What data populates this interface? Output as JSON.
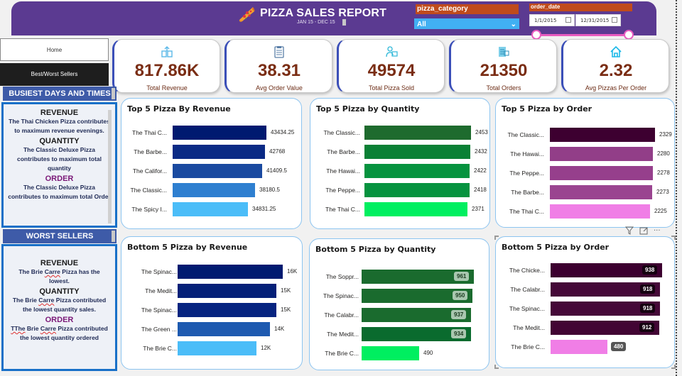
{
  "header": {
    "title": "PIZZA SALES REPORT",
    "subtitle": "JAN 15 - DEC 15",
    "icon": "pizza-slice-icon",
    "bg_color": "#5b3a91"
  },
  "filters": {
    "category": {
      "label": "pizza_category",
      "value": "All",
      "icon": "chevron-down-icon"
    },
    "order_date": {
      "label": "order_date",
      "start": "1/1/2015",
      "end": "12/31/2015",
      "icon": "calendar-icon",
      "slider_color": "#e85bbf"
    }
  },
  "nav": {
    "home": "Home",
    "best_worst": "Best/Worst Sellers"
  },
  "kpis": [
    {
      "value": "817.86K",
      "label": "Total Revenue",
      "icon": "money-stack-icon"
    },
    {
      "value": "38.31",
      "label": "Avg Order Value",
      "icon": "clipboard-icon"
    },
    {
      "value": "49574",
      "label": "Total Pizza Sold",
      "icon": "delivery-person-icon"
    },
    {
      "value": "21350",
      "label": "Total Orders",
      "icon": "order-list-icon"
    },
    {
      "value": "2.32",
      "label": "Avg Pizzas Per Order",
      "icon": "house-icon"
    }
  ],
  "busiest": {
    "heading": "BUSIEST DAYS AND TIMES",
    "revenue_h": "REVENUE",
    "revenue_t": "The Thai Chicken Pizza contributes to maximum revenue evenings.",
    "quantity_h": "QUANTITY",
    "quantity_t": "The Classic Deluxe Pizza contributes to maximum total quantity",
    "order_h": "ORDER",
    "order_t": "The Classic Deluxe Pizza contributes to maximum total Order"
  },
  "worst": {
    "heading": "WORST SELLERS",
    "revenue_h": "REVENUE",
    "revenue_t1": "The Brie ",
    "revenue_sq": "Carre",
    "revenue_t2": " Pizza has the lowest.",
    "quantity_h": "QUANTITY",
    "quantity_t1": "The Brie ",
    "quantity_sq": "Carre",
    "quantity_t2": " Pizza contributed the lowest quantity sales.",
    "order_h": "ORDER",
    "order_sq1": "TThe",
    "order_t1": " Brie ",
    "order_sq2": "Carre",
    "order_t2": " Pizza contributed the lowest quantity ordered"
  },
  "toolbar": {
    "filter_icon": "filter-icon",
    "focus_icon": "focus-mode-icon",
    "more_icon": "more-options-icon",
    "more_label": "···"
  },
  "chart_data": [
    {
      "type": "bar",
      "title": "Top 5 Pizza By Revenue",
      "categories": [
        "The Thai C...",
        "The Barbe...",
        "The Califor...",
        "The Classic...",
        "The Spicy I..."
      ],
      "values": [
        43434.25,
        42768,
        41409.5,
        38180.5,
        34831.25
      ],
      "labels": [
        "43434.25",
        "42768",
        "41409.5",
        "38180.5",
        "34831.25"
      ],
      "colors": [
        "#001a70",
        "#0a2a85",
        "#1a4aa0",
        "#2e7fd0",
        "#4bbdf8"
      ],
      "label_position": "outside"
    },
    {
      "type": "bar",
      "title": "Top 5 Pizza by Quantity",
      "categories": [
        "The Classic...",
        "The Barbe...",
        "The Hawai...",
        "The Peppe...",
        "The Thai C..."
      ],
      "values": [
        2453,
        2432,
        2422,
        2418,
        2371
      ],
      "labels": [
        "2453",
        "2432",
        "2422",
        "2418",
        "2371"
      ],
      "colors": [
        "#1e6b2e",
        "#0a8035",
        "#06933f",
        "#06933f",
        "#00ef60"
      ],
      "label_position": "outside"
    },
    {
      "type": "bar",
      "title": "Top 5 Pizza by Order",
      "categories": [
        "The Classic...",
        "The Hawai...",
        "The Peppe...",
        "The Barbe...",
        "The Thai C..."
      ],
      "values": [
        2329,
        2280,
        2278,
        2273,
        2225
      ],
      "labels": [
        "2329",
        "2280",
        "2278",
        "2273",
        "2225"
      ],
      "colors": [
        "#3d0030",
        "#923e88",
        "#963f8c",
        "#9a4490",
        "#f07ee6"
      ],
      "label_position": "outside"
    },
    {
      "type": "bar",
      "title": "Bottom 5 Pizza by Revenue",
      "categories": [
        "The Spinac...",
        "The Medit...",
        "The Spinac...",
        "The Green ...",
        "The Brie C..."
      ],
      "values": [
        16000,
        15000,
        15000,
        14000,
        12000
      ],
      "labels": [
        "16K",
        "15K",
        "15K",
        "14K",
        "12K"
      ],
      "colors": [
        "#001a70",
        "#042078",
        "#062480",
        "#1e5ab0",
        "#4bbdf8"
      ],
      "label_position": "outside"
    },
    {
      "type": "bar",
      "title": "Bottom 5 Pizza by Quantity",
      "categories": [
        "The Soppr...",
        "The Spinac...",
        "The Calabr...",
        "The Medit...",
        "The Brie C..."
      ],
      "values": [
        961,
        950,
        937,
        934,
        490
      ],
      "labels": [
        "961",
        "950",
        "937",
        "934",
        "490"
      ],
      "colors": [
        "#1a6b2e",
        "#1a6b2e",
        "#1a6b2e",
        "#0a6b2e",
        "#00ef60"
      ],
      "label_position": "inside",
      "label_bg": "#a9c7af"
    },
    {
      "type": "bar",
      "title": "Bottom 5 Pizza by Order",
      "categories": [
        "The Chicke...",
        "The Calabr...",
        "The Spinac...",
        "The Medit...",
        "The Brie C..."
      ],
      "values": [
        938,
        918,
        918,
        912,
        480
      ],
      "labels": [
        "938",
        "918",
        "918",
        "912",
        "480"
      ],
      "colors": [
        "#3d0030",
        "#450838",
        "#450838",
        "#420534",
        "#f07ee6"
      ],
      "label_position": "inside",
      "label_bg": "#150010"
    }
  ]
}
